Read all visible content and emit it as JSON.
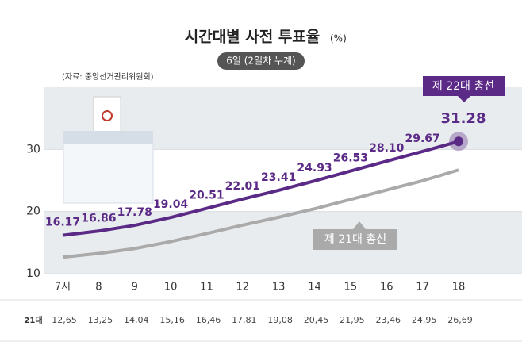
{
  "chart_data": {
    "type": "line",
    "title": "시간대별 사전 투표율",
    "unit": "(%)",
    "subtitle": "6일 (2일차 누계)",
    "source": "(자료: 중앙선거관리위원회)",
    "categories": [
      "7시",
      "8",
      "9",
      "10",
      "11",
      "12",
      "13",
      "14",
      "15",
      "16",
      "17",
      "18"
    ],
    "series": [
      {
        "name": "제 22대 총선",
        "color": "#5b2a86",
        "values": [
          16.17,
          16.86,
          17.78,
          19.04,
          20.51,
          22.01,
          23.41,
          24.93,
          26.53,
          28.1,
          29.67,
          31.28
        ],
        "value_labels": [
          "16.17",
          "16.86",
          "17.78",
          "19.04",
          "20.51",
          "22.01",
          "23.41",
          "24.93",
          "26.53",
          "28.10",
          "29.67",
          "31.28"
        ]
      },
      {
        "name": "제 21대 총선",
        "color": "#aaaaaa",
        "values": [
          12.65,
          13.25,
          14.04,
          15.16,
          16.46,
          17.81,
          19.08,
          20.45,
          21.95,
          23.46,
          24.95,
          26.69
        ],
        "value_labels": [
          "12,65",
          "13,25",
          "14,04",
          "15,16",
          "16,46",
          "17,81",
          "19,08",
          "20,45",
          "21,95",
          "23,46",
          "24,95",
          "26,69"
        ]
      }
    ],
    "table_label": "21대",
    "ylim": [
      10,
      40
    ],
    "yticks": [
      10,
      20,
      30
    ]
  }
}
